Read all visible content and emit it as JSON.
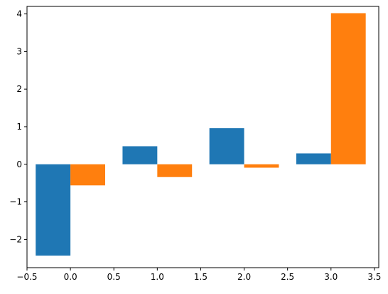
{
  "chart_data": {
    "type": "bar",
    "title": "",
    "xlabel": "",
    "ylabel": "",
    "xlim": [
      -0.5,
      3.55
    ],
    "ylim": [
      -2.75,
      4.2
    ],
    "grid": false,
    "x_ticks": [
      -0.5,
      0.0,
      0.5,
      1.0,
      1.5,
      2.0,
      2.5,
      3.0,
      3.5
    ],
    "x_tick_labels": [
      "−0.5",
      "0.0",
      "0.5",
      "1.0",
      "1.5",
      "2.0",
      "2.5",
      "3.0",
      "3.5"
    ],
    "y_ticks": [
      -2,
      -1,
      0,
      1,
      2,
      3,
      4
    ],
    "y_tick_labels": [
      "−2",
      "−1",
      "0",
      "1",
      "2",
      "3",
      "4"
    ],
    "bar_width": 0.4,
    "series": [
      {
        "color": "#1f77b4",
        "x": [
          -0.2,
          0.8,
          1.8,
          2.8
        ],
        "values": [
          -2.43,
          0.48,
          0.96,
          0.29
        ]
      },
      {
        "color": "#ff7f0e",
        "x": [
          0.2,
          1.2,
          2.2,
          3.2
        ],
        "values": [
          -0.56,
          -0.34,
          -0.09,
          4.02
        ]
      }
    ]
  }
}
